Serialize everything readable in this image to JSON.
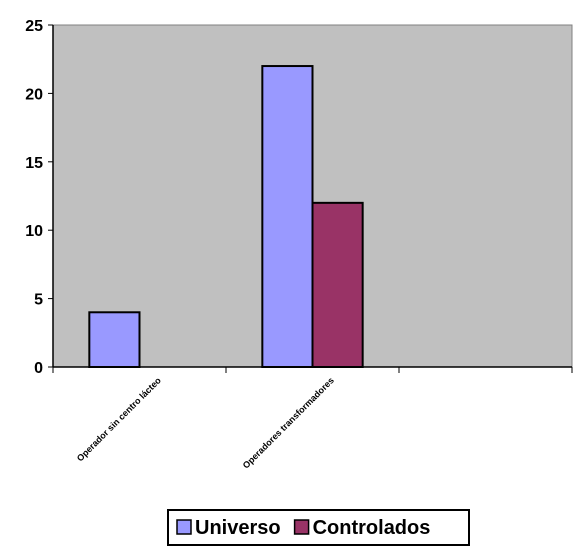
{
  "chart_data": {
    "type": "bar",
    "categories": [
      "Operador sin centro lácteo",
      "Operadores transformadores",
      ""
    ],
    "series": [
      {
        "name": "Universo",
        "values": [
          4,
          22,
          0
        ],
        "color": "#9999ff"
      },
      {
        "name": "Controlados",
        "values": [
          0,
          12,
          0
        ],
        "color": "#993366"
      }
    ],
    "ylim": [
      0,
      25
    ],
    "yticks": [
      0,
      5,
      10,
      15,
      20,
      25
    ],
    "grid": false,
    "plot_background": "#c0c0c0",
    "legend_position": "bottom"
  }
}
